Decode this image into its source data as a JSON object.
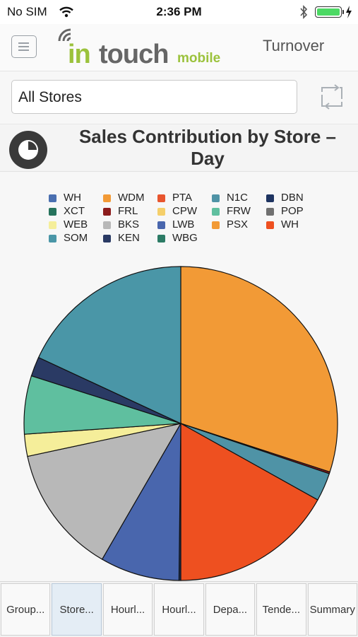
{
  "status_bar": {
    "carrier": "No SIM",
    "time": "2:36 PM",
    "battery_level": 1.0
  },
  "header": {
    "app_name_part1": "in",
    "app_name_part2": "touch",
    "app_name_part3": "mobile",
    "section": "Turnover"
  },
  "store_filter": {
    "value": "All Stores"
  },
  "chart_title": "Sales Contribution by Store – Day",
  "legend": [
    {
      "label": "WH",
      "color": "#4a6fb0"
    },
    {
      "label": "WDM",
      "color": "#f29a36"
    },
    {
      "label": "PTA",
      "color": "#e8552e"
    },
    {
      "label": "N1C",
      "color": "#4f93a6"
    },
    {
      "label": "DBN",
      "color": "#1e3461"
    },
    {
      "label": "XCT",
      "color": "#26735c"
    },
    {
      "label": "FRL",
      "color": "#8c1c1c"
    },
    {
      "label": "CPW",
      "color": "#f5cf6a"
    },
    {
      "label": "FRW",
      "color": "#5fbf9f"
    },
    {
      "label": "POP",
      "color": "#707070"
    },
    {
      "label": "WEB",
      "color": "#f5ee9a"
    },
    {
      "label": "BKS",
      "color": "#b8b8b8"
    },
    {
      "label": "LWB",
      "color": "#4966ad"
    },
    {
      "label": "PSX",
      "color": "#f29a36"
    },
    {
      "label": "WH",
      "color": "#ee5020"
    },
    {
      "label": "SOM",
      "color": "#4a96a7"
    },
    {
      "label": "KEN",
      "color": "#2a3a64"
    },
    {
      "label": "WBG",
      "color": "#2c7b65"
    }
  ],
  "chart_data": {
    "type": "pie",
    "title": "Sales Contribution by Store – Day",
    "slices": [
      {
        "label": "PSX",
        "value": 33.0,
        "color": "#f29a36"
      },
      {
        "label": "FRL",
        "value": 0.2,
        "color": "#8c1c1c"
      },
      {
        "label": "N1C",
        "value": 3.2,
        "color": "#4f93a6"
      },
      {
        "label": "WH",
        "value": 18.6,
        "color": "#ee5020"
      },
      {
        "label": "DBN",
        "value": 0.2,
        "color": "#1e3461"
      },
      {
        "label": "LWB",
        "value": 9.0,
        "color": "#4966ad"
      },
      {
        "label": "BKS",
        "value": 14.6,
        "color": "#b8b8b8"
      },
      {
        "label": "WEB",
        "value": 2.5,
        "color": "#f5ee9a"
      },
      {
        "label": "FRW",
        "value": 6.6,
        "color": "#5fbf9f"
      },
      {
        "label": "KEN",
        "value": 2.2,
        "color": "#2a3a64"
      },
      {
        "label": "SOM",
        "value": 19.9,
        "color": "#4a96a7"
      }
    ]
  },
  "tabs": [
    {
      "label": "Group...",
      "active": false
    },
    {
      "label": "Store...",
      "active": true
    },
    {
      "label": "Hourl...",
      "active": false
    },
    {
      "label": "Hourl...",
      "active": false
    },
    {
      "label": "Depa...",
      "active": false
    },
    {
      "label": "Tende...",
      "active": false
    },
    {
      "label": "Summary",
      "active": false
    }
  ]
}
